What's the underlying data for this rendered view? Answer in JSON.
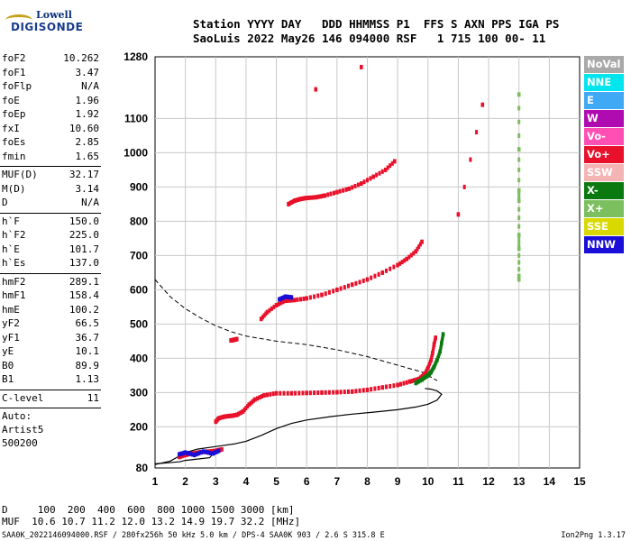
{
  "logo": {
    "line1": "Lowell",
    "line2": "DIGISONDE"
  },
  "header": {
    "line1": "Station YYYY DAY   DDD HHMMSS P1  FFS S AXN PPS IGA PS",
    "line2": "SaoLuis 2022 May26 146 094000 RSF   1 715 100 00- 11"
  },
  "params": [
    {
      "k": "foF2",
      "v": "10.262"
    },
    {
      "k": "foF1",
      "v": "3.47"
    },
    {
      "k": "foFlp",
      "v": "N/A"
    },
    {
      "k": "foE",
      "v": "1.96"
    },
    {
      "k": "foEp",
      "v": "1.92"
    },
    {
      "k": "fxI",
      "v": "10.60"
    },
    {
      "k": "foEs",
      "v": "2.85"
    },
    {
      "k": "fmin",
      "v": "1.65"
    },
    {
      "sep": true
    },
    {
      "k": "MUF(D)",
      "v": "32.17"
    },
    {
      "k": "M(D)",
      "v": "3.14"
    },
    {
      "k": "D",
      "v": "N/A"
    },
    {
      "sep": true
    },
    {
      "k": "h`F",
      "v": "150.0"
    },
    {
      "k": "h`F2",
      "v": "225.0"
    },
    {
      "k": "h`E",
      "v": "101.7"
    },
    {
      "k": "h`Es",
      "v": "137.0"
    },
    {
      "sep": true
    },
    {
      "k": "hmF2",
      "v": "289.1"
    },
    {
      "k": "hmF1",
      "v": "158.4"
    },
    {
      "k": "hmE",
      "v": "100.2"
    },
    {
      "k": "yF2",
      "v": "66.5"
    },
    {
      "k": "yF1",
      "v": "36.7"
    },
    {
      "k": "yE",
      "v": "10.1"
    },
    {
      "k": "B0",
      "v": "89.9"
    },
    {
      "k": "B1",
      "v": "1.13"
    },
    {
      "sep": true
    },
    {
      "k": "C-level",
      "v": "11"
    },
    {
      "sep": true
    },
    {
      "text": "Auto:"
    },
    {
      "text": "Artist5"
    },
    {
      "text": "500200"
    }
  ],
  "legend": [
    {
      "label": "NoVal",
      "color": "#a9a9a9"
    },
    {
      "label": "NNE",
      "color": "#00e5ee"
    },
    {
      "label": "E",
      "color": "#3fa9f5"
    },
    {
      "label": "W",
      "color": "#b00bb0"
    },
    {
      "label": "Vo-",
      "color": "#ff4fb4"
    },
    {
      "label": "Vo+",
      "color": "#e8102a"
    },
    {
      "label": "SSW",
      "color": "#f5b4b4"
    },
    {
      "label": "X-",
      "color": "#0a7a10"
    },
    {
      "label": "X+",
      "color": "#7cbf5e"
    },
    {
      "label": "SSE",
      "color": "#d9d900"
    },
    {
      "label": "NNW",
      "color": "#1a0ed8"
    }
  ],
  "footer": {
    "line1": "D     100  200  400  600  800 1000 1500 3000 [km]",
    "line2": "MUF  10.6 10.7 11.2 12.0 13.2 14.9 19.7 32.2 [MHz]",
    "line3": "SAA0K_2022146094000.RSF / 280fx256h 50 kHz 5.0 km / DPS-4 SAA0K 903 / 2.6 S 315.8 E",
    "line4": "Ion2Png 1.3.17"
  },
  "chart_data": {
    "type": "scatter",
    "title": "",
    "xlabel": "",
    "ylabel": "",
    "xlim": [
      1,
      15
    ],
    "ylim": [
      80,
      1280
    ],
    "xticks": [
      1,
      2,
      3,
      4,
      5,
      6,
      7,
      8,
      9,
      10,
      11,
      12,
      13,
      14,
      15
    ],
    "yticks": [
      80,
      200,
      300,
      400,
      500,
      600,
      700,
      800,
      900,
      1000,
      1100,
      1280
    ],
    "grid": true,
    "series": [
      {
        "color": "#e8102a",
        "kind": "trace",
        "x": [
          3.0,
          3.1,
          3.3,
          3.5,
          3.7,
          3.9,
          4.1,
          4.3,
          4.6,
          5.0,
          5.5,
          6.0,
          6.5,
          7.0,
          7.5,
          8.0,
          8.5,
          9.0,
          9.4,
          9.7,
          9.9,
          10.0,
          10.1,
          10.15,
          10.2,
          10.25
        ],
        "y": [
          215,
          225,
          230,
          232,
          235,
          245,
          265,
          280,
          292,
          298,
          298,
          299,
          300,
          301,
          303,
          308,
          315,
          322,
          332,
          340,
          355,
          372,
          395,
          415,
          440,
          460
        ]
      },
      {
        "color": "#0a7a10",
        "kind": "trace",
        "x": [
          9.6,
          9.8,
          10.0,
          10.1,
          10.2,
          10.3,
          10.4,
          10.45,
          10.5
        ],
        "y": [
          328,
          338,
          350,
          360,
          375,
          395,
          420,
          445,
          470
        ]
      },
      {
        "color": "#e8102a",
        "kind": "trace",
        "x": [
          4.5,
          4.7,
          5.0,
          5.3,
          5.6,
          6.0,
          6.5,
          7.0,
          7.5,
          8.0,
          8.5,
          9.0,
          9.3,
          9.6,
          9.8
        ],
        "y": [
          515,
          535,
          555,
          568,
          570,
          575,
          585,
          600,
          615,
          630,
          650,
          672,
          690,
          712,
          740
        ]
      },
      {
        "color": "#1a0ed8",
        "kind": "trace",
        "x": [
          5.1,
          5.3,
          5.5
        ],
        "y": [
          572,
          580,
          578
        ]
      },
      {
        "color": "#e8102a",
        "kind": "trace",
        "x": [
          5.4,
          5.6,
          5.8,
          6.0,
          6.3,
          6.6,
          7.0,
          7.4,
          7.8,
          8.2,
          8.6,
          8.9
        ],
        "y": [
          850,
          860,
          865,
          868,
          870,
          875,
          885,
          895,
          910,
          930,
          950,
          975
        ]
      },
      {
        "color": "#e8102a",
        "kind": "trace",
        "x": [
          3.5,
          3.6,
          3.7
        ],
        "y": [
          452,
          454,
          456
        ]
      },
      {
        "color": "#e8102a",
        "kind": "trace",
        "x": [
          1.8,
          2.0,
          2.2,
          2.5,
          2.8,
          3.0,
          3.2
        ],
        "y": [
          112,
          118,
          122,
          126,
          128,
          130,
          134
        ]
      },
      {
        "color": "#1a0ed8",
        "kind": "trace",
        "x": [
          1.8,
          2.0,
          2.3,
          2.6,
          2.9,
          3.1
        ],
        "y": [
          120,
          125,
          118,
          128,
          122,
          130
        ]
      },
      {
        "color": "#7cbf5e",
        "kind": "trace",
        "x": [
          13,
          13,
          13,
          13,
          13,
          13,
          13,
          13
        ],
        "y": [
          1170,
          1010,
          890,
          860,
          760,
          720,
          640,
          630
        ]
      },
      {
        "color": "#e8102a",
        "kind": "trace",
        "x": [
          6.3,
          7.8,
          11.8,
          11.0
        ],
        "y": [
          1185,
          1250,
          1140,
          820
        ]
      }
    ],
    "profile_solid": {
      "x": [
        1.0,
        1.5,
        1.7,
        2.0,
        2.4,
        2.8,
        3.2,
        3.6,
        4.0,
        4.5,
        5.0,
        5.5,
        6.0,
        6.8,
        7.5,
        8.2,
        9.0,
        9.6,
        10.0,
        10.3,
        10.45,
        10.3,
        10.1,
        9.9
      ],
      "y": [
        90,
        100,
        110,
        125,
        135,
        140,
        145,
        150,
        158,
        175,
        195,
        210,
        220,
        230,
        237,
        243,
        250,
        258,
        266,
        278,
        295,
        305,
        310,
        312
      ]
    },
    "profile_lower": {
      "x": [
        1.0,
        1.4,
        1.8,
        2.0,
        2.4,
        2.8,
        3.0
      ],
      "y": [
        92,
        95,
        98,
        102,
        106,
        110,
        130
      ]
    },
    "profile_dashed": {
      "x": [
        1.0,
        1.5,
        2.0,
        2.5,
        3.0,
        3.5,
        4.0,
        5.0,
        6.0,
        7.0,
        8.0,
        9.0,
        9.8,
        10.3
      ],
      "y": [
        630,
        580,
        545,
        518,
        495,
        478,
        465,
        450,
        440,
        425,
        405,
        380,
        360,
        335
      ]
    }
  }
}
